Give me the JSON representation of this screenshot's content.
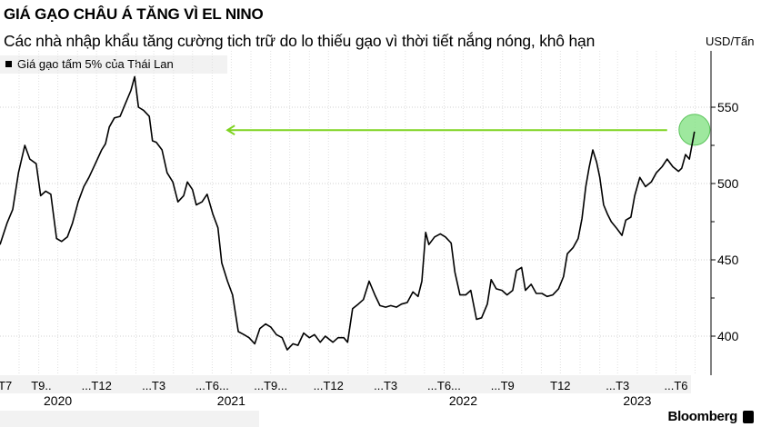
{
  "header": {
    "title": "GIÁ GẠO CHÂU Á TĂNG VÌ EL NINO",
    "subtitle": "Các nhà nhập khẩu tăng cường tich trữ do lo thiếu gạo vì thời tiết nắng nóng, khô hạn"
  },
  "brand": "Bloomberg",
  "chart_data": {
    "type": "line",
    "title": "GIÁ GẠO CHÂU Á TĂNG VÌ EL NINO",
    "subtitle": "Các nhà nhập khẩu tăng cường tich trữ do lo thiếu gạo vì thời tiết nắng nóng, khô hạn",
    "ylabel": "USD/Tấn",
    "ylim": [
      375,
      575
    ],
    "yticks": [
      400,
      450,
      500,
      550
    ],
    "ytick_labels": [
      "400",
      "450",
      "500",
      "550"
    ],
    "y_axis_side": "right",
    "grid": true,
    "legend_position": "top-left",
    "xlim": [
      "2020-07-02",
      "2023-08-01"
    ],
    "xtick_labels": [
      {
        "date": "2020-07-10",
        "label": "T7"
      },
      {
        "date": "2020-09-05",
        "label": "T9.."
      },
      {
        "date": "2020-12-01",
        "label": "...T12"
      },
      {
        "date": "2021-03-01",
        "label": "...T3"
      },
      {
        "date": "2021-06-01",
        "label": "...T6..."
      },
      {
        "date": "2021-09-01",
        "label": "...T9..."
      },
      {
        "date": "2021-12-01",
        "label": "...T12"
      },
      {
        "date": "2022-03-01",
        "label": "...T3"
      },
      {
        "date": "2022-06-01",
        "label": "...T6..."
      },
      {
        "date": "2022-09-01",
        "label": "...T9"
      },
      {
        "date": "2022-12-01",
        "label": "T12"
      },
      {
        "date": "2023-03-01",
        "label": "...T3"
      },
      {
        "date": "2023-06-01",
        "label": "...T6"
      }
    ],
    "year_labels": [
      {
        "date": "2020-10-01",
        "label": "2020"
      },
      {
        "date": "2021-07-01",
        "label": "2021"
      },
      {
        "date": "2022-07-01",
        "label": "2022"
      },
      {
        "date": "2023-04-01",
        "label": "2023"
      }
    ],
    "series": [
      {
        "name": "Giá gạo tấm 5% của Thái Lan",
        "color": "#000000",
        "points": [
          [
            "2020-07-02",
            460
          ],
          [
            "2020-07-13",
            474
          ],
          [
            "2020-07-22",
            483
          ],
          [
            "2020-07-31",
            507
          ],
          [
            "2020-08-10",
            525
          ],
          [
            "2020-08-18",
            516
          ],
          [
            "2020-08-28",
            513
          ],
          [
            "2020-09-04",
            492
          ],
          [
            "2020-09-12",
            495
          ],
          [
            "2020-09-20",
            493
          ],
          [
            "2020-09-29",
            464
          ],
          [
            "2020-10-07",
            462
          ],
          [
            "2020-10-16",
            465
          ],
          [
            "2020-10-24",
            474
          ],
          [
            "2020-11-02",
            488
          ],
          [
            "2020-11-11",
            498
          ],
          [
            "2020-11-19",
            504
          ],
          [
            "2020-11-28",
            512
          ],
          [
            "2020-12-09",
            522
          ],
          [
            "2020-12-15",
            526
          ],
          [
            "2020-12-21",
            537
          ],
          [
            "2020-12-29",
            543
          ],
          [
            "2021-01-07",
            544
          ],
          [
            "2021-01-15",
            552
          ],
          [
            "2021-01-24",
            561
          ],
          [
            "2021-01-30",
            570
          ],
          [
            "2021-02-05",
            550
          ],
          [
            "2021-02-13",
            548
          ],
          [
            "2021-02-22",
            544
          ],
          [
            "2021-02-27",
            528
          ],
          [
            "2021-03-05",
            527
          ],
          [
            "2021-03-14",
            522
          ],
          [
            "2021-03-22",
            507
          ],
          [
            "2021-03-31",
            501
          ],
          [
            "2021-04-08",
            488
          ],
          [
            "2021-04-17",
            492
          ],
          [
            "2021-04-23",
            501
          ],
          [
            "2021-05-01",
            496
          ],
          [
            "2021-05-07",
            486
          ],
          [
            "2021-05-16",
            488
          ],
          [
            "2021-05-24",
            493
          ],
          [
            "2021-06-02",
            480
          ],
          [
            "2021-06-10",
            471
          ],
          [
            "2021-06-16",
            448
          ],
          [
            "2021-06-25",
            436
          ],
          [
            "2021-07-03",
            427
          ],
          [
            "2021-07-12",
            403
          ],
          [
            "2021-07-21",
            401
          ],
          [
            "2021-07-29",
            399
          ],
          [
            "2021-08-07",
            395
          ],
          [
            "2021-08-15",
            405
          ],
          [
            "2021-08-24",
            408
          ],
          [
            "2021-09-01",
            406
          ],
          [
            "2021-09-10",
            401
          ],
          [
            "2021-09-19",
            399
          ],
          [
            "2021-09-27",
            391
          ],
          [
            "2021-10-06",
            395
          ],
          [
            "2021-10-14",
            394
          ],
          [
            "2021-10-23",
            402
          ],
          [
            "2021-11-01",
            399
          ],
          [
            "2021-11-09",
            401
          ],
          [
            "2021-11-18",
            396
          ],
          [
            "2021-11-26",
            400
          ],
          [
            "2021-12-08",
            396
          ],
          [
            "2021-12-16",
            399
          ],
          [
            "2021-12-25",
            399
          ],
          [
            "2021-12-31",
            396
          ],
          [
            "2022-01-08",
            418
          ],
          [
            "2022-01-17",
            421
          ],
          [
            "2022-01-25",
            424
          ],
          [
            "2022-02-03",
            436
          ],
          [
            "2022-02-12",
            427
          ],
          [
            "2022-02-20",
            420
          ],
          [
            "2022-03-01",
            419
          ],
          [
            "2022-03-09",
            420
          ],
          [
            "2022-03-18",
            419
          ],
          [
            "2022-03-26",
            421
          ],
          [
            "2022-04-04",
            422
          ],
          [
            "2022-04-13",
            429
          ],
          [
            "2022-04-21",
            426
          ],
          [
            "2022-04-27",
            436
          ],
          [
            "2022-05-03",
            468
          ],
          [
            "2022-05-08",
            460
          ],
          [
            "2022-05-17",
            465
          ],
          [
            "2022-05-26",
            467
          ],
          [
            "2022-06-03",
            465
          ],
          [
            "2022-06-12",
            461
          ],
          [
            "2022-06-18",
            442
          ],
          [
            "2022-06-26",
            427
          ],
          [
            "2022-07-05",
            427
          ],
          [
            "2022-07-13",
            430
          ],
          [
            "2022-07-22",
            411
          ],
          [
            "2022-07-30",
            412
          ],
          [
            "2022-08-08",
            421
          ],
          [
            "2022-08-14",
            437
          ],
          [
            "2022-08-22",
            431
          ],
          [
            "2022-08-31",
            430
          ],
          [
            "2022-09-08",
            427
          ],
          [
            "2022-09-17",
            430
          ],
          [
            "2022-09-23",
            443
          ],
          [
            "2022-10-01",
            445
          ],
          [
            "2022-10-07",
            430
          ],
          [
            "2022-10-16",
            434
          ],
          [
            "2022-10-24",
            428
          ],
          [
            "2022-11-02",
            428
          ],
          [
            "2022-11-10",
            426
          ],
          [
            "2022-11-19",
            427
          ],
          [
            "2022-11-28",
            431
          ],
          [
            "2022-12-06",
            439
          ],
          [
            "2022-12-12",
            454
          ],
          [
            "2022-12-21",
            458
          ],
          [
            "2022-12-29",
            464
          ],
          [
            "2023-01-04",
            477
          ],
          [
            "2023-01-10",
            498
          ],
          [
            "2023-01-15",
            510
          ],
          [
            "2023-01-21",
            522
          ],
          [
            "2023-01-27",
            514
          ],
          [
            "2023-02-01",
            504
          ],
          [
            "2023-02-07",
            486
          ],
          [
            "2023-02-13",
            480
          ],
          [
            "2023-02-19",
            475
          ],
          [
            "2023-02-27",
            471
          ],
          [
            "2023-03-08",
            466
          ],
          [
            "2023-03-14",
            476
          ],
          [
            "2023-03-22",
            478
          ],
          [
            "2023-03-28",
            492
          ],
          [
            "2023-04-05",
            504
          ],
          [
            "2023-04-14",
            498
          ],
          [
            "2023-04-23",
            501
          ],
          [
            "2023-05-01",
            507
          ],
          [
            "2023-05-10",
            511
          ],
          [
            "2023-05-18",
            516
          ],
          [
            "2023-05-27",
            511
          ],
          [
            "2023-06-05",
            508
          ],
          [
            "2023-06-10",
            510
          ],
          [
            "2023-06-16",
            519
          ],
          [
            "2023-06-22",
            516
          ],
          [
            "2023-06-30",
            534
          ]
        ]
      }
    ],
    "annotations": {
      "arrow": {
        "from_date": "2023-05-18",
        "to_date": "2021-06-25",
        "value": 535,
        "color": "#7ed321",
        "direction": "left"
      },
      "highlight_circle": {
        "date": "2023-06-30",
        "value": 534,
        "color": "#7ee07e"
      }
    }
  }
}
